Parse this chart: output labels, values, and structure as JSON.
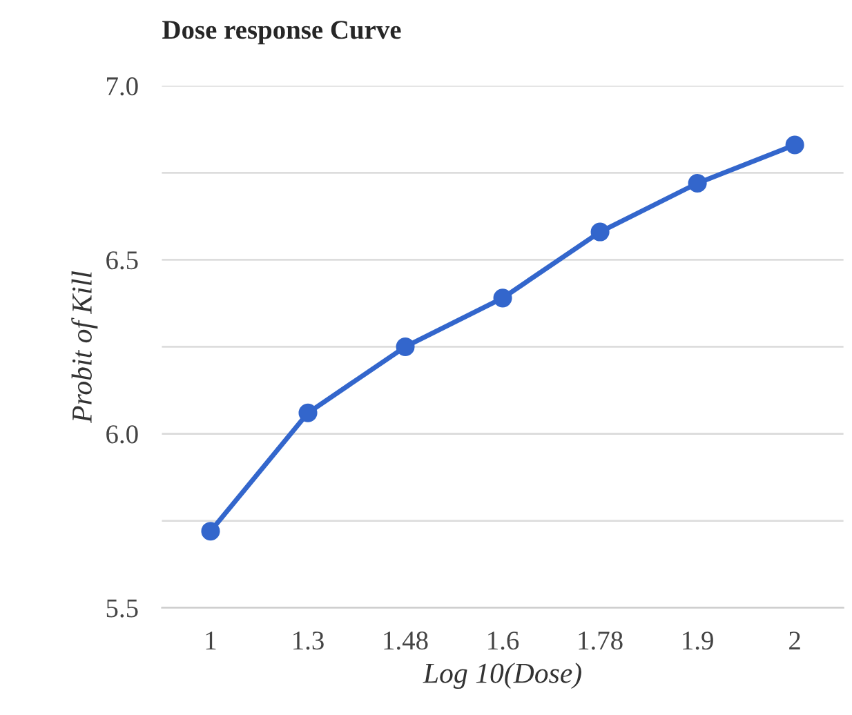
{
  "chart_data": {
    "type": "line",
    "title": "Dose response Curve",
    "xlabel": "Log 10(Dose)",
    "ylabel": "Probit of Kill",
    "categories": [
      "1",
      "1.3",
      "1.48",
      "1.6",
      "1.78",
      "1.9",
      "2"
    ],
    "series": [
      {
        "color": "#3366cc",
        "values": [
          5.72,
          6.06,
          6.25,
          6.39,
          6.58,
          6.72,
          6.83
        ]
      }
    ],
    "ylim": [
      5.5,
      7.0
    ],
    "yticks": [
      {
        "value": 5.5,
        "label": "5.5"
      },
      {
        "value": 5.75,
        "label": null
      },
      {
        "value": 6.0,
        "label": "6.0"
      },
      {
        "value": 6.25,
        "label": null
      },
      {
        "value": 6.5,
        "label": "6.5"
      },
      {
        "value": 6.75,
        "label": null
      },
      {
        "value": 7.0,
        "label": "7.0"
      }
    ],
    "grid": "y",
    "marker": "circle",
    "line_style": "solid"
  }
}
